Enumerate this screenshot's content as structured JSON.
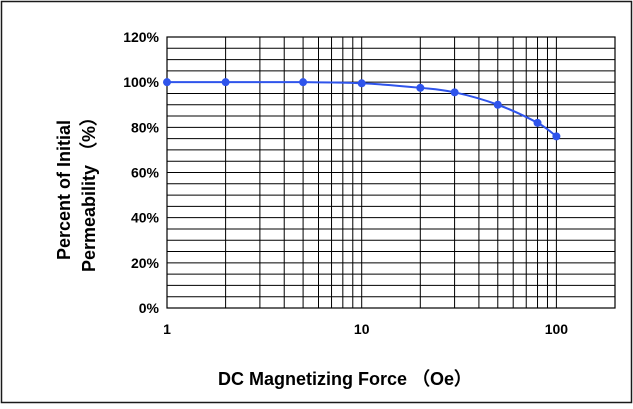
{
  "chart_data": {
    "type": "line",
    "title": "",
    "xlabel": "DC Magnetizing Force （Oe）",
    "ylabel_line1": "Percent of Initial",
    "ylabel_line2": "Permeability （%）",
    "x_scale": "log",
    "xlim": [
      1,
      200
    ],
    "ylim": [
      0,
      120
    ],
    "x_ticks": [
      1,
      10,
      100
    ],
    "x_tick_labels": [
      "1",
      "10",
      "100"
    ],
    "y_ticks": [
      0,
      20,
      40,
      60,
      80,
      100,
      120
    ],
    "y_tick_labels": [
      "0%",
      "20%",
      "40%",
      "60%",
      "80%",
      "100%",
      "120%"
    ],
    "grid": true,
    "legend": "none",
    "series": [
      {
        "color": "#2f54eb",
        "x": [
          1,
          2,
          5,
          10,
          20,
          30,
          50,
          80,
          100
        ],
        "y": [
          100,
          100,
          100,
          99.5,
          97.5,
          95.5,
          90,
          82,
          76
        ]
      }
    ]
  }
}
